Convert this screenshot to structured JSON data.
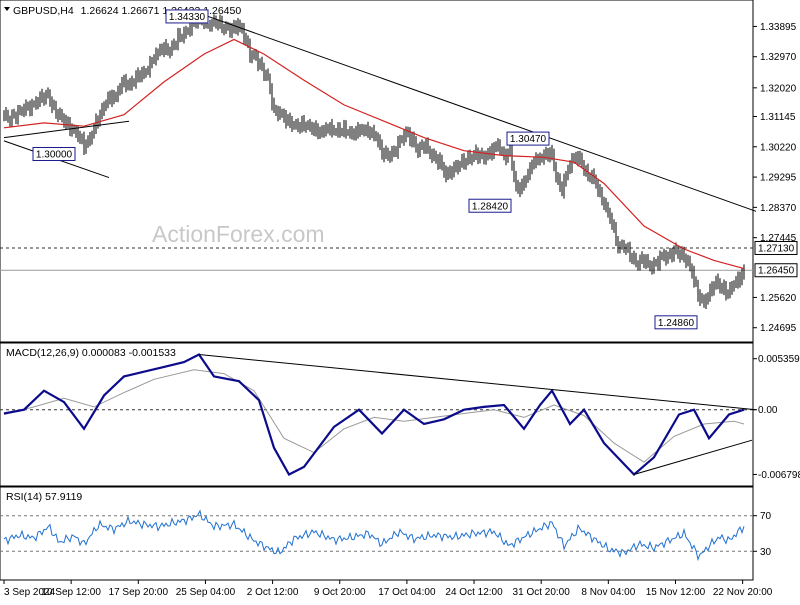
{
  "header": {
    "symbol": "GBPUSD,H4",
    "ohlc": "1.26624 1.26671 1.26433 1.26450",
    "macd": "MACD(12,26,9) 0.000083 -0.001533",
    "rsi": "RSI(14) 57.9119"
  },
  "watermark": "ActionForex.com",
  "colors": {
    "background": "#ffffff",
    "price": "#000000",
    "ma": "#d42222",
    "macd": "#0b0b8c",
    "signal": "#9a9a9a",
    "rsi": "#1f6fd1",
    "axis_text": "#000000",
    "watermark": "#c8c8c8"
  },
  "chart_data": [
    {
      "type": "candlestick",
      "series_name": "GBPUSD,H4",
      "ylim": [
        1.2432,
        1.3458
      ],
      "y_ticks": [
        "1.33895",
        "1.32970",
        "1.32020",
        "1.31145",
        "1.30220",
        "1.29295",
        "1.28370",
        "1.27445",
        "1.25620",
        "1.24695"
      ],
      "current_price_label": "1.26450",
      "reference_level_label": "1.27130",
      "current_price": 1.2645,
      "reference_level": 1.2713,
      "x_tick_labels": [
        "3 Sep 2024",
        "10 Sep 12:00",
        "17 Sep 20:00",
        "25 Sep 04:00",
        "2 Oct 12:00",
        "9 Oct 20:00",
        "17 Oct 04:00",
        "24 Oct 12:00",
        "31 Oct 20:00",
        "8 Nov 04:00",
        "15 Nov 12:00",
        "22 Nov 20:00"
      ],
      "price_path": [
        [
          0,
          1.312
        ],
        [
          5,
          1.3105
        ],
        [
          12,
          1.312
        ],
        [
          20,
          1.314
        ],
        [
          28,
          1.3145
        ],
        [
          36,
          1.317
        ],
        [
          44,
          1.318
        ],
        [
          50,
          1.3135
        ],
        [
          58,
          1.311
        ],
        [
          66,
          1.308
        ],
        [
          74,
          1.306
        ],
        [
          80,
          1.3025
        ],
        [
          86,
          1.3045
        ],
        [
          90,
          1.308
        ],
        [
          96,
          1.312
        ],
        [
          104,
          1.317
        ],
        [
          112,
          1.3175
        ],
        [
          118,
          1.322
        ],
        [
          126,
          1.321
        ],
        [
          134,
          1.324
        ],
        [
          142,
          1.325
        ],
        [
          150,
          1.3295
        ],
        [
          158,
          1.3325
        ],
        [
          166,
          1.3315
        ],
        [
          174,
          1.3355
        ],
        [
          182,
          1.337
        ],
        [
          190,
          1.3405
        ],
        [
          198,
          1.341
        ],
        [
          206,
          1.3395
        ],
        [
          212,
          1.3405
        ],
        [
          220,
          1.3385
        ],
        [
          228,
          1.338
        ],
        [
          234,
          1.3395
        ],
        [
          240,
          1.3365
        ],
        [
          246,
          1.3305
        ],
        [
          252,
          1.3295
        ],
        [
          258,
          1.326
        ],
        [
          264,
          1.323
        ],
        [
          270,
          1.313
        ],
        [
          276,
          1.3125
        ],
        [
          284,
          1.31
        ],
        [
          292,
          1.3085
        ],
        [
          300,
          1.309
        ],
        [
          308,
          1.308
        ],
        [
          316,
          1.3065
        ],
        [
          324,
          1.308
        ],
        [
          332,
          1.307
        ],
        [
          340,
          1.3075
        ],
        [
          348,
          1.306
        ],
        [
          356,
          1.3075
        ],
        [
          364,
          1.307
        ],
        [
          372,
          1.3055
        ],
        [
          378,
          1.3005
        ],
        [
          384,
          1.2995
        ],
        [
          390,
          1.3005
        ],
        [
          396,
          1.304
        ],
        [
          402,
          1.3065
        ],
        [
          408,
          1.3045
        ],
        [
          414,
          1.301
        ],
        [
          420,
          1.303
        ],
        [
          428,
          1.2995
        ],
        [
          436,
          1.2975
        ],
        [
          442,
          1.2935
        ],
        [
          448,
          1.295
        ],
        [
          456,
          1.297
        ],
        [
          464,
          1.2985
        ],
        [
          472,
          1.3
        ],
        [
          480,
          1.299
        ],
        [
          488,
          1.301
        ],
        [
          494,
          1.303
        ],
        [
          500,
          1.299
        ],
        [
          506,
          1.301
        ],
        [
          512,
          1.2895
        ],
        [
          518,
          1.29
        ],
        [
          524,
          1.294
        ],
        [
          530,
          1.298
        ],
        [
          536,
          1.2985
        ],
        [
          542,
          1.3
        ],
        [
          548,
          1.3
        ],
        [
          552,
          1.293
        ],
        [
          558,
          1.289
        ],
        [
          564,
          1.2955
        ],
        [
          570,
          1.299
        ],
        [
          576,
          1.2985
        ],
        [
          582,
          1.294
        ],
        [
          590,
          1.2925
        ],
        [
          596,
          1.2875
        ],
        [
          602,
          1.2835
        ],
        [
          608,
          1.279
        ],
        [
          614,
          1.2715
        ],
        [
          620,
          1.272
        ],
        [
          626,
          1.2695
        ],
        [
          632,
          1.2665
        ],
        [
          640,
          1.268
        ],
        [
          646,
          1.2655
        ],
        [
          652,
          1.2665
        ],
        [
          658,
          1.269
        ],
        [
          664,
          1.2685
        ],
        [
          670,
          1.2705
        ],
        [
          676,
          1.2695
        ],
        [
          682,
          1.268
        ],
        [
          688,
          1.264
        ],
        [
          694,
          1.257
        ],
        [
          700,
          1.2545
        ],
        [
          706,
          1.258
        ],
        [
          712,
          1.261
        ],
        [
          718,
          1.259
        ],
        [
          724,
          1.2575
        ],
        [
          730,
          1.2605
        ],
        [
          736,
          1.262
        ],
        [
          740,
          1.2645
        ]
      ],
      "moving_average": [
        [
          0,
          1.308
        ],
        [
          40,
          1.3095
        ],
        [
          80,
          1.3085
        ],
        [
          120,
          1.312
        ],
        [
          160,
          1.322
        ],
        [
          200,
          1.3305
        ],
        [
          230,
          1.335
        ],
        [
          260,
          1.3305
        ],
        [
          300,
          1.3225
        ],
        [
          340,
          1.315
        ],
        [
          380,
          1.31
        ],
        [
          420,
          1.305
        ],
        [
          460,
          1.301
        ],
        [
          500,
          1.2995
        ],
        [
          540,
          1.299
        ],
        [
          570,
          1.2975
        ],
        [
          600,
          1.291
        ],
        [
          640,
          1.278
        ],
        [
          680,
          1.271
        ],
        [
          710,
          1.2675
        ],
        [
          740,
          1.265
        ]
      ],
      "annotations": [
        "1.34330",
        "1.30000",
        "1.30470",
        "1.28420",
        "1.24860"
      ],
      "trendlines": [
        {
          "from": [
            0,
            1.305
          ],
          "to": [
            125,
            1.31
          ]
        },
        {
          "from": [
            0,
            1.304
          ],
          "to": [
            105,
            1.2928
          ]
        },
        {
          "from": [
            195,
            1.343
          ],
          "to": [
            752,
            1.2825
          ]
        }
      ]
    },
    {
      "type": "line",
      "series_name": "MACD(12,26,9)",
      "values_text": [
        "0.000083",
        "-0.001533"
      ],
      "y_ticks": [
        "0.005359",
        "0.00",
        "-0.006798"
      ],
      "ylim": [
        -0.0078,
        0.0068
      ],
      "macd_line": [
        [
          0,
          -0.0004
        ],
        [
          20,
          0.0
        ],
        [
          40,
          0.002
        ],
        [
          60,
          0.0008
        ],
        [
          80,
          -0.002
        ],
        [
          100,
          0.0015
        ],
        [
          120,
          0.0035
        ],
        [
          140,
          0.004
        ],
        [
          160,
          0.0045
        ],
        [
          180,
          0.005
        ],
        [
          195,
          0.0058
        ],
        [
          210,
          0.0035
        ],
        [
          235,
          0.003
        ],
        [
          255,
          0.001
        ],
        [
          270,
          -0.004
        ],
        [
          285,
          -0.0068
        ],
        [
          300,
          -0.006
        ],
        [
          330,
          -0.0018
        ],
        [
          355,
          0.0
        ],
        [
          378,
          -0.0025
        ],
        [
          400,
          0.0
        ],
        [
          420,
          -0.0015
        ],
        [
          440,
          -0.001
        ],
        [
          460,
          0.0
        ],
        [
          480,
          0.0003
        ],
        [
          500,
          0.0005
        ],
        [
          520,
          -0.002
        ],
        [
          536,
          0.0005
        ],
        [
          548,
          0.002
        ],
        [
          566,
          -0.0015
        ],
        [
          580,
          0.0
        ],
        [
          600,
          -0.0035
        ],
        [
          630,
          -0.0068
        ],
        [
          650,
          -0.005
        ],
        [
          675,
          -0.0005
        ],
        [
          690,
          0.0
        ],
        [
          705,
          -0.003
        ],
        [
          725,
          -0.0005
        ],
        [
          740,
          0.0
        ]
      ],
      "signal_line": [
        [
          0,
          -0.0005
        ],
        [
          30,
          0.0003
        ],
        [
          60,
          0.0012
        ],
        [
          90,
          0.0003
        ],
        [
          120,
          0.0018
        ],
        [
          150,
          0.0032
        ],
        [
          190,
          0.0042
        ],
        [
          220,
          0.0038
        ],
        [
          250,
          0.002
        ],
        [
          280,
          -0.003
        ],
        [
          310,
          -0.0045
        ],
        [
          340,
          -0.002
        ],
        [
          370,
          -0.0008
        ],
        [
          400,
          -0.0012
        ],
        [
          430,
          -0.0008
        ],
        [
          460,
          -0.0004
        ],
        [
          490,
          0.0
        ],
        [
          520,
          -0.0008
        ],
        [
          550,
          0.0005
        ],
        [
          580,
          -0.0006
        ],
        [
          610,
          -0.0035
        ],
        [
          640,
          -0.0055
        ],
        [
          670,
          -0.0028
        ],
        [
          700,
          -0.0015
        ],
        [
          730,
          -0.0012
        ],
        [
          740,
          -0.0015
        ]
      ],
      "trendlines": [
        {
          "from": [
            195,
            0.0058
          ],
          "to": [
            752,
            0.0
          ]
        },
        {
          "from": [
            630,
            -0.0068
          ],
          "to": [
            748,
            -0.0032
          ]
        }
      ]
    },
    {
      "type": "line",
      "series_name": "RSI(14)",
      "value_text": "57.9119",
      "y_ticks": [
        "70",
        "30"
      ],
      "ylim": [
        0,
        100
      ],
      "levels": [
        70,
        30
      ],
      "values": [
        [
          0,
          42
        ],
        [
          15,
          48
        ],
        [
          30,
          45
        ],
        [
          45,
          58
        ],
        [
          55,
          40
        ],
        [
          70,
          47
        ],
        [
          80,
          38
        ],
        [
          95,
          60
        ],
        [
          110,
          55
        ],
        [
          125,
          64
        ],
        [
          140,
          60
        ],
        [
          155,
          58
        ],
        [
          170,
          62
        ],
        [
          185,
          66
        ],
        [
          195,
          72
        ],
        [
          210,
          58
        ],
        [
          230,
          60
        ],
        [
          250,
          42
        ],
        [
          265,
          33
        ],
        [
          275,
          28
        ],
        [
          290,
          44
        ],
        [
          310,
          52
        ],
        [
          330,
          43
        ],
        [
          345,
          45
        ],
        [
          365,
          50
        ],
        [
          378,
          38
        ],
        [
          395,
          52
        ],
        [
          410,
          44
        ],
        [
          430,
          48
        ],
        [
          450,
          46
        ],
        [
          470,
          50
        ],
        [
          490,
          52
        ],
        [
          505,
          36
        ],
        [
          520,
          46
        ],
        [
          535,
          55
        ],
        [
          548,
          62
        ],
        [
          560,
          36
        ],
        [
          575,
          56
        ],
        [
          590,
          44
        ],
        [
          605,
          32
        ],
        [
          620,
          28
        ],
        [
          635,
          38
        ],
        [
          650,
          34
        ],
        [
          665,
          42
        ],
        [
          680,
          50
        ],
        [
          695,
          24
        ],
        [
          705,
          36
        ],
        [
          715,
          46
        ],
        [
          725,
          42
        ],
        [
          740,
          58
        ]
      ]
    }
  ]
}
